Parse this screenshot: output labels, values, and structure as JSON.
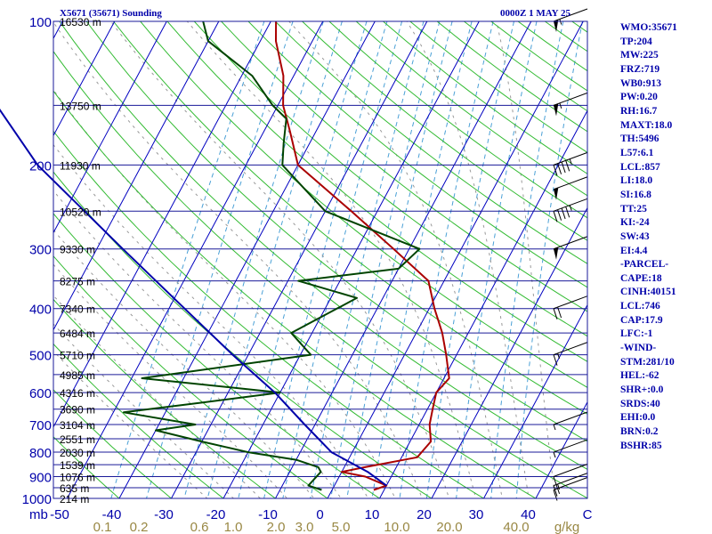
{
  "header": {
    "station": "X5671 (35671) Sounding",
    "datetime": "0000Z  1 MAY 25"
  },
  "indices": [
    "WMO:35671",
    "TP:204",
    "MW:225",
    "FRZ:719",
    "WB0:913",
    "PW:0.20",
    "RH:16.7",
    "MAXT:18.0",
    "TH:5496",
    "L57:6.1",
    "LCL:857",
    "LI:18.0",
    "SI:16.8",
    "TT:25",
    "KI:-24",
    "SW:43",
    "EI:4.4",
    "-PARCEL-",
    "CAPE:18",
    "CINH:40151",
    "LCL:746",
    "CAP:17.9",
    "LFC:-1",
    "-WIND-",
    "STM:281/10",
    "HEL:-62",
    "SHR+:0.0",
    "SRDS:40",
    "EHI:0.0",
    "BRN:0.2",
    "BSHR:85"
  ],
  "colors": {
    "isobar": "#1a1a99",
    "isotherm": "#0000c0",
    "dry_adiabat": "#33bb33",
    "moist_adiabat": "#999999",
    "mixing_ratio": "#4aa0d6",
    "temperature": "#aa0000",
    "dewpoint": "#004400",
    "parcel": "#0000aa",
    "label": "#0000aa",
    "mixing_label": "#998844"
  },
  "chart_data": {
    "type": "skew-t",
    "xlabel": "C",
    "xunit_mixing": "g/kg",
    "ylabel": "mb",
    "pressure_levels": [
      100,
      200,
      300,
      400,
      500,
      600,
      700,
      800,
      900,
      1000
    ],
    "height_levels": [
      {
        "p": 100,
        "label": "16530 m"
      },
      {
        "p": 150,
        "label": "13750 m"
      },
      {
        "p": 200,
        "label": "11930 m"
      },
      {
        "p": 250,
        "label": "10520 m"
      },
      {
        "p": 300,
        "label": "9330 m"
      },
      {
        "p": 350,
        "label": "8275 m"
      },
      {
        "p": 400,
        "label": "7340 m"
      },
      {
        "p": 450,
        "label": "6484 m"
      },
      {
        "p": 500,
        "label": "5710 m"
      },
      {
        "p": 550,
        "label": "4985 m"
      },
      {
        "p": 600,
        "label": "4316 m"
      },
      {
        "p": 650,
        "label": "3690 m"
      },
      {
        "p": 700,
        "label": "3104 m"
      },
      {
        "p": 750,
        "label": "2551 m"
      },
      {
        "p": 800,
        "label": "2030 m"
      },
      {
        "p": 850,
        "label": "1539 m"
      },
      {
        "p": 900,
        "label": "1076 m"
      },
      {
        "p": 950,
        "label": "635 m"
      },
      {
        "p": 1000,
        "label": "214 m"
      }
    ],
    "temperature_ticks": [
      -50,
      -40,
      -30,
      -20,
      -10,
      0,
      10,
      20,
      30,
      40
    ],
    "mixing_ratio_ticks": [
      "0.1",
      "0.2",
      "0.6",
      "1.0",
      "2.0",
      "3.0",
      "5.0",
      "10.0",
      "20.0",
      "40.0"
    ],
    "series": [
      {
        "key": "temperature",
        "points": [
          [
            960,
            8
          ],
          [
            940,
            10
          ],
          [
            900,
            5
          ],
          [
            880,
            0
          ],
          [
            860,
            4
          ],
          [
            820,
            13
          ],
          [
            760,
            14
          ],
          [
            700,
            12
          ],
          [
            650,
            11
          ],
          [
            600,
            10
          ],
          [
            560,
            11
          ],
          [
            500,
            8
          ],
          [
            450,
            5
          ],
          [
            400,
            1
          ],
          [
            350,
            -3
          ],
          [
            300,
            -13
          ],
          [
            250,
            -25
          ],
          [
            200,
            -40
          ],
          [
            170,
            -45
          ],
          [
            150,
            -49
          ],
          [
            130,
            -52
          ],
          [
            110,
            -57
          ],
          [
            100,
            -59
          ]
        ]
      },
      {
        "key": "dewpoint",
        "points": [
          [
            960,
            -2
          ],
          [
            940,
            -5
          ],
          [
            880,
            -4
          ],
          [
            860,
            -5
          ],
          [
            830,
            -10
          ],
          [
            800,
            -20
          ],
          [
            760,
            -30
          ],
          [
            720,
            -40
          ],
          [
            700,
            -33
          ],
          [
            660,
            -48
          ],
          [
            630,
            -34
          ],
          [
            600,
            -20
          ],
          [
            560,
            -48
          ],
          [
            500,
            -18
          ],
          [
            450,
            -24
          ],
          [
            380,
            -15
          ],
          [
            350,
            -28
          ],
          [
            330,
            -10
          ],
          [
            300,
            -8
          ],
          [
            250,
            -30
          ],
          [
            200,
            -43
          ],
          [
            180,
            -45
          ],
          [
            160,
            -47
          ],
          [
            150,
            -51
          ],
          [
            130,
            -58
          ],
          [
            110,
            -70
          ],
          [
            100,
            -73
          ]
        ]
      },
      {
        "key": "parcel",
        "points": [
          [
            940,
            10
          ],
          [
            880,
            5
          ],
          [
            800,
            -4
          ],
          [
            700,
            -12
          ],
          [
            600,
            -21
          ],
          [
            500,
            -33
          ],
          [
            400,
            -47
          ],
          [
            300,
            -65
          ],
          [
            200,
            -90
          ],
          [
            150,
            -104
          ],
          [
            100,
            -122
          ]
        ]
      }
    ],
    "wind_barbs": [
      {
        "p": 960,
        "speed_kt": 15
      },
      {
        "p": 940,
        "speed_kt": 15
      },
      {
        "p": 900,
        "speed_kt": 10
      },
      {
        "p": 800,
        "speed_kt": 5
      },
      {
        "p": 700,
        "speed_kt": 5
      },
      {
        "p": 500,
        "speed_kt": 15
      },
      {
        "p": 400,
        "speed_kt": 20
      },
      {
        "p": 300,
        "speed_kt": 50
      },
      {
        "p": 250,
        "speed_kt": 45
      },
      {
        "p": 225,
        "speed_kt": 50
      },
      {
        "p": 200,
        "speed_kt": 45
      },
      {
        "p": 150,
        "speed_kt": 55
      },
      {
        "p": 100,
        "speed_kt": 55
      }
    ]
  }
}
